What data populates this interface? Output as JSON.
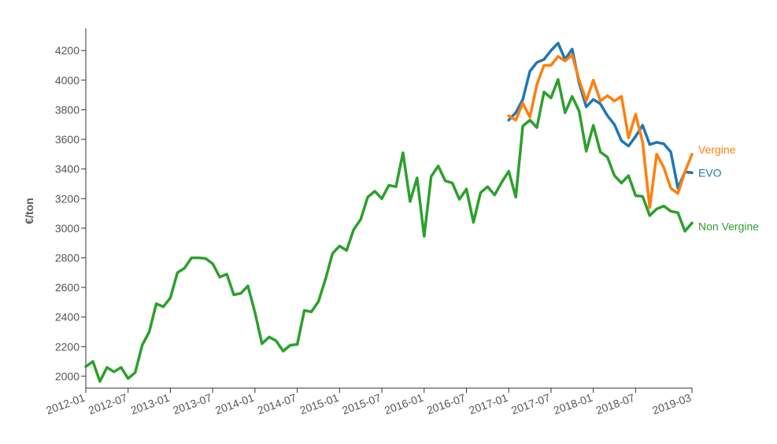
{
  "chart_data": {
    "type": "line",
    "title": "",
    "xlabel": "",
    "ylabel": "€/ton",
    "xlim": [
      "2012-01",
      "2019-03"
    ],
    "ylim": [
      1920,
      4350
    ],
    "x_ticks": [
      "2012-01",
      "2012-07",
      "2013-01",
      "2013-07",
      "2014-01",
      "2014-07",
      "2015-01",
      "2015-07",
      "2016-01",
      "2016-07",
      "2017-01",
      "2017-07",
      "2018-01",
      "2018-07",
      "2019-03"
    ],
    "y_ticks": [
      2000,
      2200,
      2400,
      2600,
      2800,
      3000,
      3200,
      3400,
      3600,
      3800,
      4000,
      4200
    ],
    "grid": false,
    "legend": "inline-end-of-lines",
    "series": [
      {
        "name": "Non Vergine",
        "color": "#2ca02c",
        "x": [
          "2012-01",
          "2012-02",
          "2012-03",
          "2012-04",
          "2012-05",
          "2012-06",
          "2012-07",
          "2012-08",
          "2012-09",
          "2012-10",
          "2012-11",
          "2012-12",
          "2013-01",
          "2013-02",
          "2013-03",
          "2013-04",
          "2013-05",
          "2013-06",
          "2013-07",
          "2013-08",
          "2013-09",
          "2013-10",
          "2013-11",
          "2013-12",
          "2014-01",
          "2014-02",
          "2014-03",
          "2014-04",
          "2014-05",
          "2014-06",
          "2014-07",
          "2014-08",
          "2014-09",
          "2014-10",
          "2014-11",
          "2014-12",
          "2015-01",
          "2015-02",
          "2015-03",
          "2015-04",
          "2015-05",
          "2015-06",
          "2015-07",
          "2015-08",
          "2015-09",
          "2015-10",
          "2015-11",
          "2015-12",
          "2016-01",
          "2016-02",
          "2016-03",
          "2016-04",
          "2016-05",
          "2016-06",
          "2016-07",
          "2016-08",
          "2016-09",
          "2016-10",
          "2016-11",
          "2016-12",
          "2017-01",
          "2017-02",
          "2017-03",
          "2017-04",
          "2017-05",
          "2017-06",
          "2017-07",
          "2017-08",
          "2017-09",
          "2017-10",
          "2017-11",
          "2017-12",
          "2018-01",
          "2018-02",
          "2018-03",
          "2018-04",
          "2018-05",
          "2018-06",
          "2018-07",
          "2018-08",
          "2018-09",
          "2018-10",
          "2018-11",
          "2018-12",
          "2019-01",
          "2019-02",
          "2019-03"
        ],
        "values": [
          2065,
          2100,
          1965,
          2060,
          2030,
          2060,
          1985,
          2025,
          2210,
          2300,
          2490,
          2470,
          2530,
          2700,
          2730,
          2800,
          2800,
          2795,
          2760,
          2670,
          2690,
          2550,
          2560,
          2610,
          2430,
          2220,
          2265,
          2240,
          2170,
          2210,
          2215,
          2445,
          2435,
          2505,
          2655,
          2830,
          2880,
          2850,
          2990,
          3060,
          3210,
          3250,
          3200,
          3290,
          3280,
          3510,
          3180,
          3340,
          2945,
          3350,
          3420,
          3320,
          3305,
          3195,
          3265,
          3040,
          3240,
          3280,
          3225,
          3310,
          3385,
          3210,
          3690,
          3730,
          3680,
          3920,
          3880,
          4005,
          3780,
          3890,
          3790,
          3520,
          3695,
          3515,
          3480,
          3355,
          3305,
          3355,
          3220,
          3215,
          3085,
          3130,
          3150,
          3115,
          3105,
          2980,
          3035
        ]
      },
      {
        "name": "EVO",
        "color": "#1f77b4",
        "x": [
          "2017-01",
          "2017-02",
          "2017-03",
          "2017-04",
          "2017-05",
          "2017-06",
          "2017-07",
          "2017-08",
          "2017-09",
          "2017-10",
          "2017-11",
          "2017-12",
          "2018-01",
          "2018-02",
          "2018-03",
          "2018-04",
          "2018-05",
          "2018-06",
          "2018-07",
          "2018-08",
          "2018-09",
          "2018-10",
          "2018-11",
          "2018-12",
          "2019-01",
          "2019-02",
          "2019-03"
        ],
        "values": [
          3730,
          3780,
          3870,
          4060,
          4120,
          4140,
          4200,
          4250,
          4140,
          4210,
          3980,
          3820,
          3870,
          3840,
          3760,
          3700,
          3590,
          3555,
          3620,
          3695,
          3565,
          3580,
          3570,
          3515,
          3270,
          3380,
          3375
        ]
      },
      {
        "name": "Vergine",
        "color": "#ff7f0e",
        "x": [
          "2017-01",
          "2017-02",
          "2017-03",
          "2017-04",
          "2017-05",
          "2017-06",
          "2017-07",
          "2017-08",
          "2017-09",
          "2017-10",
          "2017-11",
          "2017-12",
          "2018-01",
          "2018-02",
          "2018-03",
          "2018-04",
          "2018-05",
          "2018-06",
          "2018-07",
          "2018-08",
          "2018-09",
          "2018-10",
          "2018-11",
          "2018-12",
          "2019-01",
          "2019-02",
          "2019-03"
        ],
        "values": [
          3760,
          3730,
          3845,
          3750,
          3970,
          4100,
          4100,
          4160,
          4130,
          4170,
          4000,
          3860,
          4000,
          3860,
          3895,
          3860,
          3890,
          3610,
          3770,
          3580,
          3140,
          3500,
          3410,
          3270,
          3235,
          3380,
          3500
        ]
      }
    ]
  }
}
